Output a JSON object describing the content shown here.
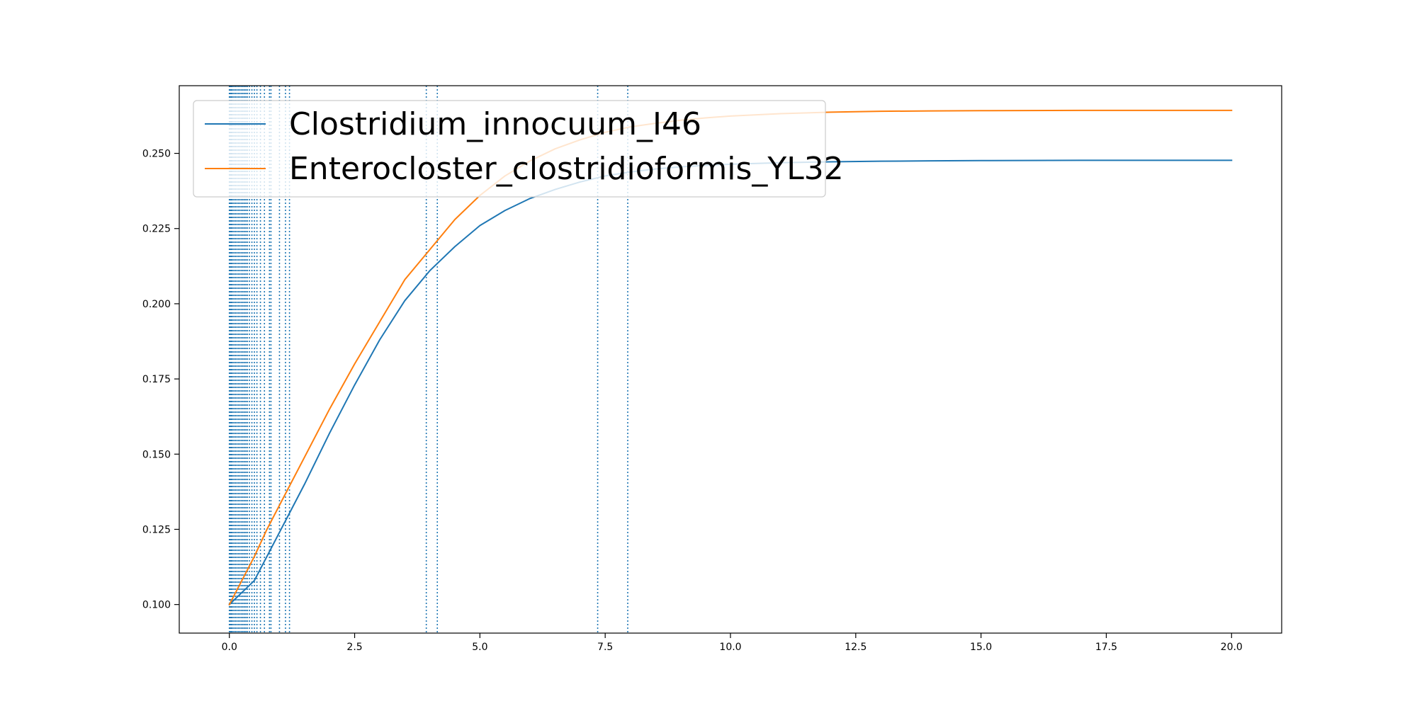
{
  "chart_data": {
    "type": "line",
    "title": "",
    "xlabel": "",
    "ylabel": "",
    "xlim": [
      -1.0,
      21.0
    ],
    "ylim": [
      0.0905,
      0.2725
    ],
    "xticks": [
      0.0,
      2.5,
      5.0,
      7.5,
      10.0,
      12.5,
      15.0,
      17.5,
      20.0
    ],
    "xtick_labels": [
      "0.0",
      "2.5",
      "5.0",
      "7.5",
      "10.0",
      "12.5",
      "15.0",
      "17.5",
      "20.0"
    ],
    "yticks": [
      0.1,
      0.125,
      0.15,
      0.175,
      0.2,
      0.225,
      0.25
    ],
    "ytick_labels": [
      "0.100",
      "0.125",
      "0.150",
      "0.175",
      "0.200",
      "0.225",
      "0.250"
    ],
    "grid": false,
    "legend_position": "upper-left",
    "series": [
      {
        "name": "Clostridium_innocuum_I46",
        "color": "#1f77b4",
        "x": [
          0,
          0.25,
          0.5,
          0.75,
          1.0,
          1.25,
          1.5,
          2.0,
          2.5,
          3.0,
          3.5,
          4.0,
          4.5,
          5.0,
          5.5,
          6.0,
          6.5,
          7.0,
          7.5,
          8.0,
          8.5,
          9.0,
          9.5,
          10.0,
          11.0,
          12.0,
          13.0,
          14.0,
          15.0,
          17.5,
          20.0
        ],
        "y": [
          0.1,
          0.104,
          0.108,
          0.116,
          0.124,
          0.132,
          0.14,
          0.157,
          0.173,
          0.188,
          0.201,
          0.211,
          0.219,
          0.226,
          0.231,
          0.235,
          0.238,
          0.2405,
          0.2425,
          0.2438,
          0.2448,
          0.2455,
          0.246,
          0.2464,
          0.2469,
          0.2472,
          0.2474,
          0.2475,
          0.2476,
          0.2477,
          0.2477
        ]
      },
      {
        "name": "Enterocloster_clostridioformis_YL32",
        "color": "#ff7f0e",
        "x": [
          0,
          0.25,
          0.5,
          0.75,
          1.0,
          1.25,
          1.5,
          2.0,
          2.5,
          3.0,
          3.5,
          4.0,
          4.5,
          5.0,
          5.5,
          6.0,
          6.5,
          7.0,
          7.5,
          8.0,
          8.5,
          9.0,
          9.5,
          10.0,
          11.0,
          12.0,
          13.0,
          14.0,
          15.0,
          17.5,
          20.0
        ],
        "y": [
          0.1,
          0.108,
          0.116,
          0.125,
          0.133,
          0.141,
          0.149,
          0.165,
          0.18,
          0.194,
          0.208,
          0.218,
          0.228,
          0.236,
          0.2425,
          0.2475,
          0.2515,
          0.2545,
          0.257,
          0.2588,
          0.26,
          0.261,
          0.2618,
          0.2624,
          0.2632,
          0.2637,
          0.264,
          0.2641,
          0.2642,
          0.2643,
          0.2643
        ]
      }
    ],
    "vlines": {
      "color": "#1f77b4",
      "style": "dotted",
      "x": [
        0.0,
        0.02,
        0.04,
        0.06,
        0.09,
        0.12,
        0.15,
        0.18,
        0.21,
        0.24,
        0.27,
        0.3,
        0.33,
        0.36,
        0.4,
        0.45,
        0.5,
        0.55,
        0.62,
        0.7,
        0.8,
        0.83,
        1.0,
        1.12,
        1.2,
        3.93,
        4.15,
        7.35,
        7.95
      ]
    }
  }
}
